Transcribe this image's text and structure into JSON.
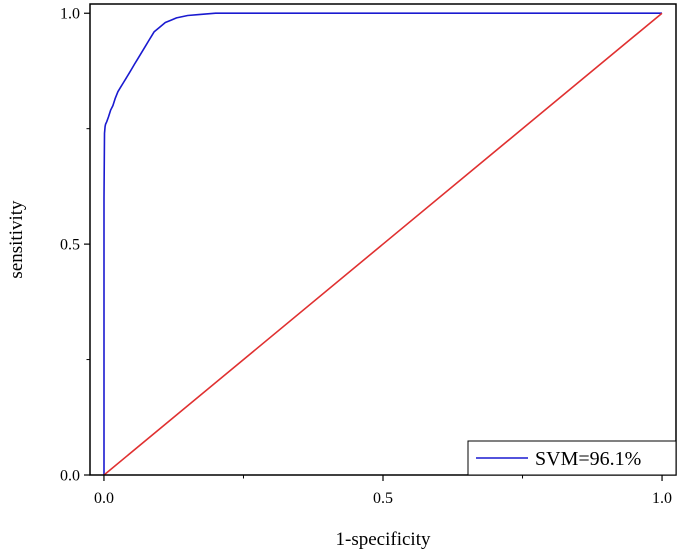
{
  "chart_data": {
    "type": "line",
    "title": "",
    "xlabel": "1-specificity",
    "ylabel": "sensitivity",
    "xlim": [
      -0.025,
      1.025
    ],
    "ylim": [
      0,
      1.02
    ],
    "x_ticks": [
      {
        "value": 0,
        "label": "0.0"
      },
      {
        "value": 0.5,
        "label": "0.5"
      },
      {
        "value": 1,
        "label": "1.0"
      }
    ],
    "y_ticks": [
      {
        "value": 0,
        "label": "0.0"
      },
      {
        "value": 0.5,
        "label": "0.5"
      },
      {
        "value": 1,
        "label": "1.0"
      }
    ],
    "grid": false,
    "legend": {
      "position": "bottom-right",
      "entries": [
        "SVM=96.1%"
      ]
    },
    "series": [
      {
        "name": "SVM=96.1%",
        "color": "#1a1ad0",
        "x": [
          0.0,
          0.0,
          0.0,
          0.001,
          0.002,
          0.003,
          0.005,
          0.008,
          0.012,
          0.016,
          0.02,
          0.025,
          0.03,
          0.035,
          0.04,
          0.045,
          0.05,
          0.055,
          0.06,
          0.065,
          0.07,
          0.075,
          0.08,
          0.085,
          0.09,
          0.1,
          0.11,
          0.12,
          0.13,
          0.15,
          0.17,
          0.2,
          0.25,
          0.35,
          0.5,
          0.7,
          0.85,
          1.0
        ],
        "y": [
          0.0,
          0.3,
          0.6,
          0.74,
          0.755,
          0.76,
          0.765,
          0.775,
          0.79,
          0.8,
          0.815,
          0.83,
          0.84,
          0.85,
          0.86,
          0.87,
          0.88,
          0.89,
          0.9,
          0.91,
          0.92,
          0.93,
          0.94,
          0.95,
          0.96,
          0.97,
          0.98,
          0.985,
          0.99,
          0.995,
          0.997,
          1.0,
          1.0,
          1.0,
          1.0,
          1.0,
          1.0,
          1.0
        ]
      },
      {
        "color": "#e03030",
        "x": [
          0,
          1
        ],
        "y": [
          0,
          1
        ]
      }
    ]
  }
}
